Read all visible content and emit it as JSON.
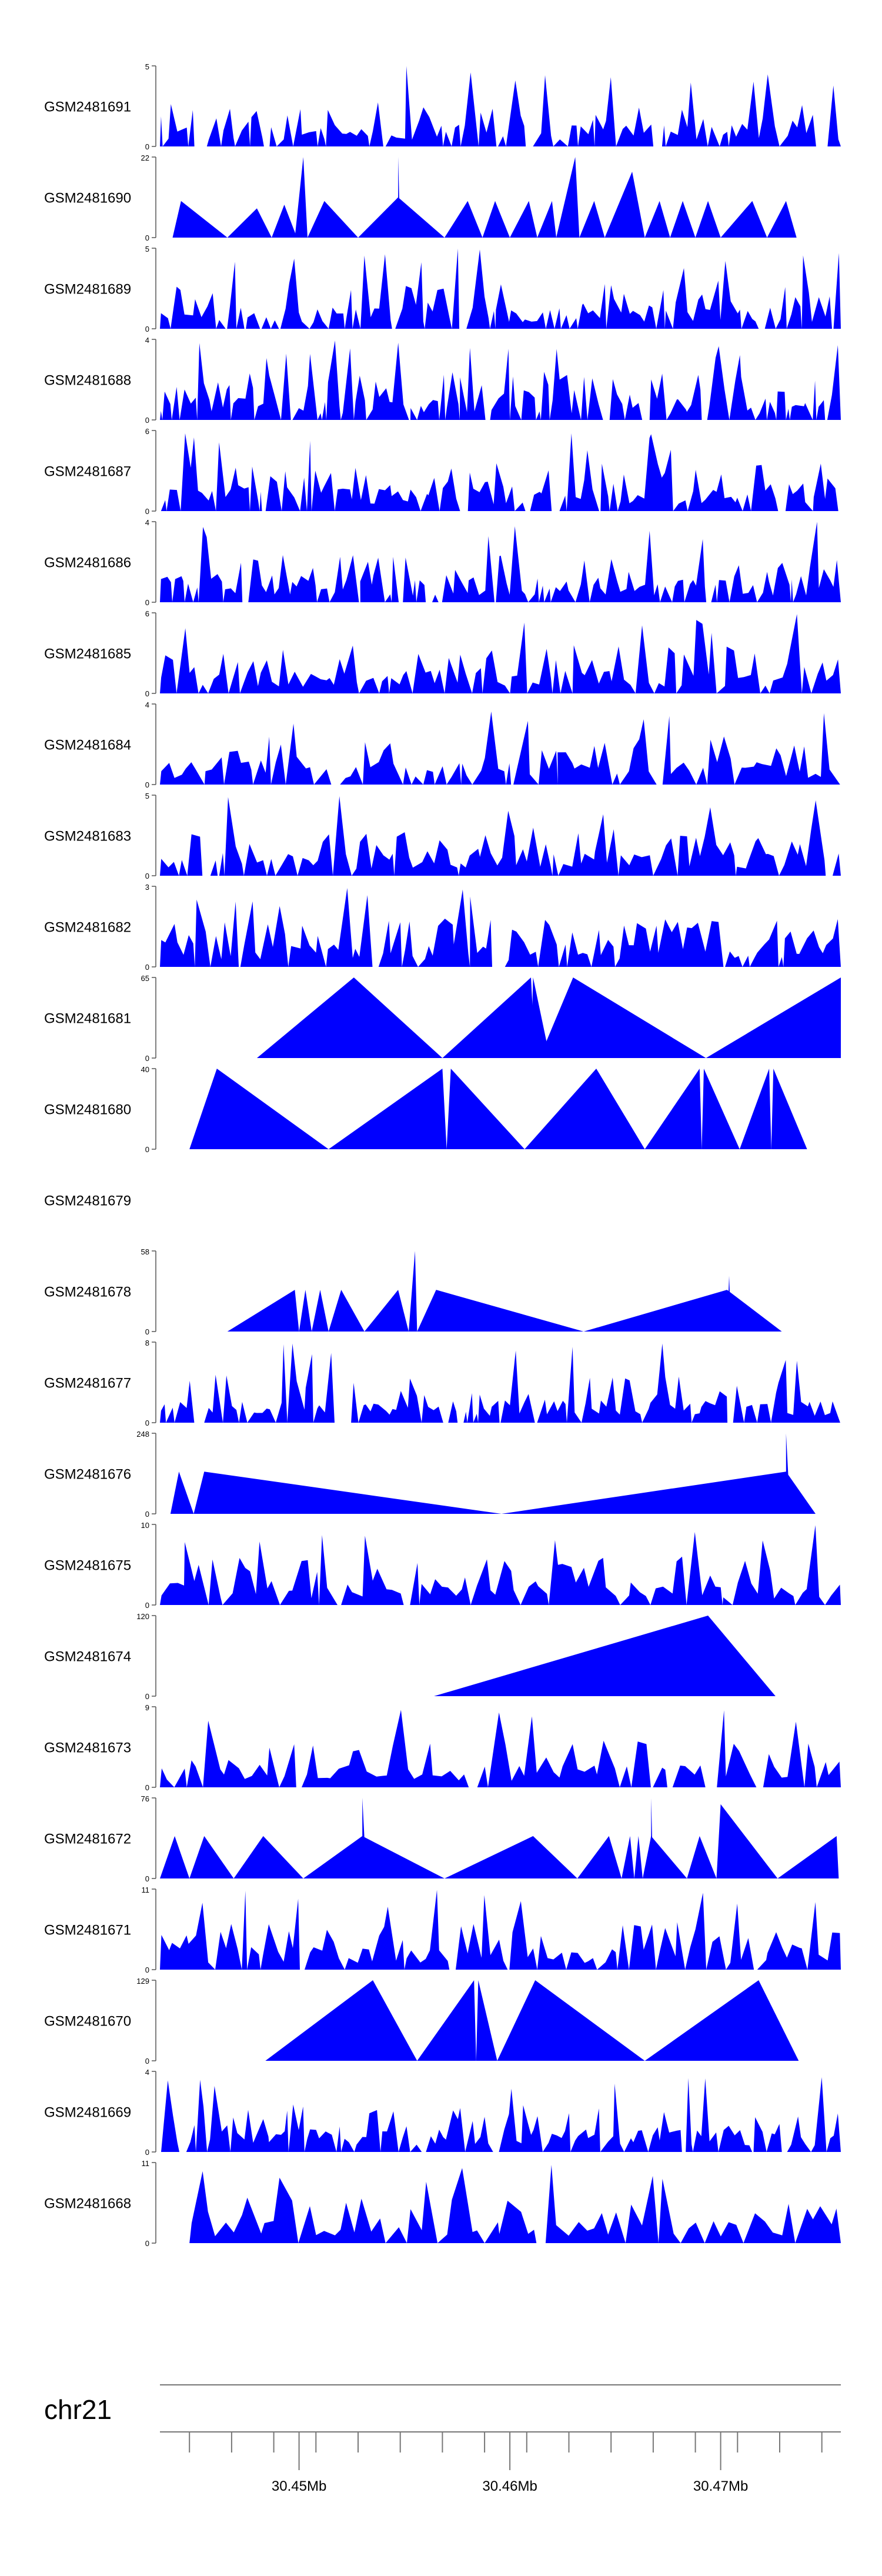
{
  "chart_data": {
    "type": "area",
    "title": "",
    "xlabel": "",
    "fill_color": "#0000FF",
    "axis_color": "#555555",
    "chromosome": "chr21",
    "xlim": [
      30.4434,
      30.4757
    ],
    "x_ticks": {
      "labeled": [
        30.45,
        30.46,
        30.47
      ],
      "labels": [
        "30.45Mb",
        "30.46Mb",
        "30.47Mb"
      ],
      "minor": [
        30.4448,
        30.4468,
        30.4488,
        30.4508,
        30.4528,
        30.4548,
        30.4568,
        30.4588,
        30.4608,
        30.4628,
        30.4648,
        30.4668,
        30.4688,
        30.4708,
        30.4728,
        30.4748
      ]
    },
    "tracks": [
      {
        "name": "GSM2481691",
        "ymax": 5,
        "ymax_label": "5",
        "kind": "dense",
        "seed": 11,
        "x_from": 30.4434,
        "x_to": 30.4757,
        "n": 130,
        "base": 0.12
      },
      {
        "name": "GSM2481690",
        "ymax": 22,
        "ymax_label": "22",
        "kind": "peaks",
        "segments": [
          [
            30.444,
            30.4444,
            30.4466,
            10
          ],
          [
            30.4466,
            30.448,
            30.4487,
            8
          ],
          [
            30.4487,
            30.4493,
            30.4499,
            9
          ],
          [
            30.4498,
            30.4502,
            30.4504,
            22
          ],
          [
            30.4504,
            30.4512,
            30.4528,
            10
          ],
          [
            30.4528,
            30.4547,
            30.4569,
            11
          ],
          [
            30.4547,
            30.4547,
            30.4548,
            22
          ],
          [
            30.4569,
            30.458,
            30.4587,
            10
          ],
          [
            30.4587,
            30.4593,
            30.46,
            10
          ],
          [
            30.46,
            30.4609,
            30.4613,
            10
          ],
          [
            30.4613,
            30.462,
            30.4622,
            10
          ],
          [
            30.4622,
            30.4631,
            30.4633,
            22
          ],
          [
            30.4633,
            30.464,
            30.4645,
            10
          ],
          [
            30.4645,
            30.4658,
            30.4664,
            18
          ],
          [
            30.4664,
            30.4671,
            30.4676,
            10
          ],
          [
            30.4676,
            30.4682,
            30.4688,
            10
          ],
          [
            30.4688,
            30.4694,
            30.47,
            10
          ],
          [
            30.47,
            30.4715,
            30.4722,
            10
          ],
          [
            30.4722,
            30.4731,
            30.4736,
            10
          ]
        ]
      },
      {
        "name": "GSM2481689",
        "ymax": 5,
        "ymax_label": "5",
        "kind": "dense",
        "seed": 23,
        "x_from": 30.4434,
        "x_to": 30.4757,
        "n": 140,
        "base": 0.08
      },
      {
        "name": "GSM2481688",
        "ymax": 4,
        "ymax_label": "4",
        "kind": "dense",
        "seed": 37,
        "x_from": 30.4434,
        "x_to": 30.4757,
        "n": 150,
        "base": 0.15
      },
      {
        "name": "GSM2481687",
        "ymax": 6,
        "ymax_label": "6",
        "kind": "dense",
        "seed": 41,
        "x_from": 30.4434,
        "x_to": 30.4757,
        "n": 150,
        "base": 0.05
      },
      {
        "name": "GSM2481686",
        "ymax": 4,
        "ymax_label": "4",
        "kind": "dense",
        "seed": 53,
        "x_from": 30.4434,
        "x_to": 30.4757,
        "n": 150,
        "base": 0.1
      },
      {
        "name": "GSM2481685",
        "ymax": 6,
        "ymax_label": "6",
        "kind": "dense",
        "seed": 61,
        "x_from": 30.4434,
        "x_to": 30.4757,
        "n": 130,
        "base": 0.05
      },
      {
        "name": "GSM2481684",
        "ymax": 4,
        "ymax_label": "4",
        "kind": "dense",
        "seed": 71,
        "x_from": 30.4434,
        "x_to": 30.4757,
        "n": 120,
        "base": 0.05
      },
      {
        "name": "GSM2481683",
        "ymax": 5,
        "ymax_label": "5",
        "kind": "dense",
        "seed": 83,
        "x_from": 30.4434,
        "x_to": 30.4757,
        "n": 130,
        "base": 0.05
      },
      {
        "name": "GSM2481682",
        "ymax": 3,
        "ymax_label": "3",
        "kind": "dense",
        "seed": 97,
        "x_from": 30.4434,
        "x_to": 30.4757,
        "n": 130,
        "base": 0.05
      },
      {
        "name": "GSM2481681",
        "ymax": 65,
        "ymax_label": "65",
        "kind": "peaks",
        "segments": [
          [
            30.448,
            30.4526,
            30.4568,
            65
          ],
          [
            30.4568,
            30.461,
            30.4612,
            65
          ],
          [
            30.461,
            30.4611,
            30.4619,
            65
          ],
          [
            30.4614,
            30.463,
            30.4693,
            65
          ],
          [
            30.4693,
            30.4757,
            30.4757,
            65
          ]
        ]
      },
      {
        "name": "GSM2481680",
        "ymax": 40,
        "ymax_label": "40",
        "kind": "peaks",
        "segments": [
          [
            30.4448,
            30.4461,
            30.4514,
            40
          ],
          [
            30.4514,
            30.4568,
            30.457,
            40
          ],
          [
            30.457,
            30.4572,
            30.4607,
            40
          ],
          [
            30.4607,
            30.4641,
            30.4664,
            40
          ],
          [
            30.4664,
            30.469,
            30.4691,
            40
          ],
          [
            30.4691,
            30.4692,
            30.4709,
            40
          ],
          [
            30.4709,
            30.4723,
            30.4724,
            40
          ],
          [
            30.4724,
            30.4725,
            30.4741,
            40
          ]
        ]
      },
      {
        "name": "GSM2481679",
        "ymax": 0,
        "ymax_label": "",
        "kind": "empty"
      },
      {
        "name": "GSM2481678",
        "ymax": 58,
        "ymax_label": "58",
        "kind": "peaks",
        "segments": [
          [
            30.4466,
            30.4498,
            30.45,
            30
          ],
          [
            30.45,
            30.4503,
            30.4506,
            30
          ],
          [
            30.4506,
            30.451,
            30.4514,
            30
          ],
          [
            30.4514,
            30.452,
            30.4531,
            30
          ],
          [
            30.4531,
            30.4547,
            30.4552,
            30
          ],
          [
            30.4552,
            30.4555,
            30.4556,
            58
          ],
          [
            30.4556,
            30.4565,
            30.4635,
            30
          ],
          [
            30.4635,
            30.4703,
            30.4729,
            30
          ],
          [
            30.4703,
            30.4704,
            30.4705,
            40
          ]
        ]
      },
      {
        "name": "GSM2481677",
        "ymax": 8,
        "ymax_label": "8",
        "kind": "dense",
        "seed": 103,
        "x_from": 30.4434,
        "x_to": 30.4757,
        "n": 150,
        "base": 0.05
      },
      {
        "name": "GSM2481676",
        "ymax": 248,
        "ymax_label": "248",
        "kind": "peaks",
        "segments": [
          [
            30.4439,
            30.4443,
            30.445,
            130
          ],
          [
            30.445,
            30.4455,
            30.4596,
            130
          ],
          [
            30.4596,
            30.4731,
            30.4745,
            130
          ],
          [
            30.4731,
            30.4731,
            30.4733,
            248
          ]
        ]
      },
      {
        "name": "GSM2481675",
        "ymax": 10,
        "ymax_label": "10",
        "kind": "dense",
        "seed": 113,
        "x_from": 30.4434,
        "x_to": 30.4757,
        "n": 110,
        "base": 0.05
      },
      {
        "name": "GSM2481674",
        "ymax": 120,
        "ymax_label": "120",
        "kind": "peaks",
        "segments": [
          [
            30.4564,
            30.4694,
            30.4726,
            120
          ]
        ]
      },
      {
        "name": "GSM2481673",
        "ymax": 9,
        "ymax_label": "9",
        "kind": "dense",
        "seed": 127,
        "x_from": 30.4434,
        "x_to": 30.4757,
        "n": 100,
        "base": 0.05
      },
      {
        "name": "GSM2481672",
        "ymax": 76,
        "ymax_label": "76",
        "kind": "peaks",
        "segments": [
          [
            30.4434,
            30.4441,
            30.4448,
            40
          ],
          [
            30.4448,
            30.4455,
            30.4469,
            40
          ],
          [
            30.4469,
            30.4483,
            30.4502,
            40
          ],
          [
            30.4502,
            30.453,
            30.4569,
            40
          ],
          [
            30.453,
            30.453,
            30.4532,
            76
          ],
          [
            30.4569,
            30.4611,
            30.4632,
            40
          ],
          [
            30.4632,
            30.4647,
            30.4653,
            40
          ],
          [
            30.4653,
            30.4657,
            30.4659,
            40
          ],
          [
            30.4659,
            30.4661,
            30.4663,
            40
          ],
          [
            30.4663,
            30.4667,
            30.4684,
            40
          ],
          [
            30.4667,
            30.4667,
            30.4668,
            76
          ],
          [
            30.4684,
            30.469,
            30.4698,
            40
          ],
          [
            30.4698,
            30.47,
            30.4727,
            70
          ],
          [
            30.4727,
            30.4755,
            30.4756,
            40
          ]
        ]
      },
      {
        "name": "GSM2481671",
        "ymax": 11,
        "ymax_label": "11",
        "kind": "dense",
        "seed": 131,
        "x_from": 30.4434,
        "x_to": 30.4757,
        "n": 120,
        "base": 0.05
      },
      {
        "name": "GSM2481670",
        "ymax": 129,
        "ymax_label": "129",
        "kind": "peaks",
        "segments": [
          [
            30.4484,
            30.4535,
            30.4556,
            129
          ],
          [
            30.4556,
            30.4583,
            30.4584,
            129
          ],
          [
            30.4584,
            30.4585,
            30.4594,
            129
          ],
          [
            30.4594,
            30.4612,
            30.4664,
            129
          ],
          [
            30.4664,
            30.4718,
            30.4737,
            129
          ]
        ]
      },
      {
        "name": "GSM2481669",
        "ymax": 4,
        "ymax_label": "4",
        "kind": "dense",
        "seed": 139,
        "x_from": 30.4434,
        "x_to": 30.4757,
        "n": 150,
        "base": 0.05
      },
      {
        "name": "GSM2481668",
        "ymax": 11,
        "ymax_label": "11",
        "kind": "dense",
        "seed": 149,
        "x_from": 30.4448,
        "x_to": 30.4757,
        "n": 80,
        "base": 0.05
      }
    ]
  }
}
